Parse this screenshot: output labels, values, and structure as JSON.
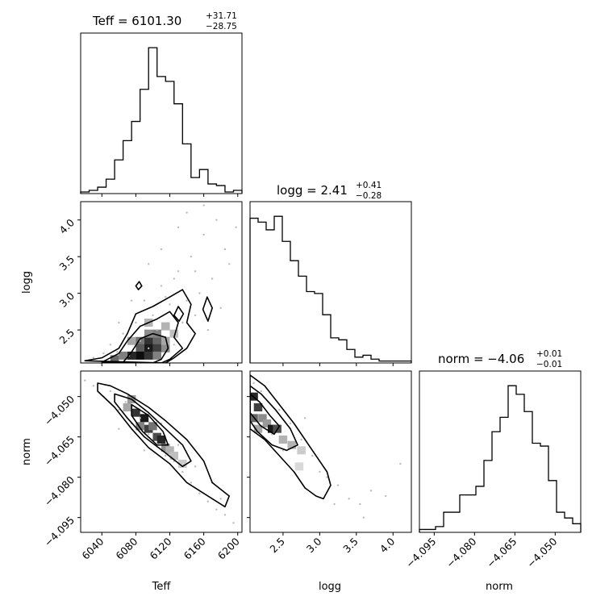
{
  "chart_data": [
    {
      "type": "histogram",
      "id": "teff-hist",
      "title_param": "Teff",
      "title_value": "6101.30",
      "title_plus": "+31.71",
      "title_minus": "−28.75",
      "xlim": [
        6015,
        6205
      ],
      "bin_edges": [
        6015,
        6025,
        6035,
        6045,
        6055,
        6065,
        6075,
        6085,
        6095,
        6105,
        6115,
        6125,
        6135,
        6145,
        6155,
        6165,
        6175,
        6185,
        6195,
        6205
      ],
      "counts": [
        1,
        2,
        4,
        9,
        21,
        33,
        45,
        65,
        91,
        73,
        70,
        56,
        31,
        10,
        15,
        6,
        5,
        1,
        2
      ]
    },
    {
      "type": "histogram",
      "id": "logg-hist",
      "title_param": "logg",
      "title_value": "2.41",
      "title_plus": "+0.41",
      "title_minus": "−0.28",
      "xlim": [
        2.05,
        4.25
      ],
      "bin_edges": [
        2.05,
        2.16,
        2.27,
        2.38,
        2.49,
        2.6,
        2.71,
        2.82,
        2.93,
        3.04,
        3.15,
        3.26,
        3.37,
        3.48,
        3.59,
        3.7,
        3.81,
        3.92,
        4.03,
        4.14,
        4.25
      ],
      "counts": [
        75,
        73,
        69,
        76,
        63,
        53,
        45,
        37,
        36,
        25,
        13,
        12,
        7,
        3,
        4,
        2,
        1,
        1,
        1,
        1
      ]
    },
    {
      "type": "histogram",
      "id": "norm-hist",
      "title_param": "norm",
      "title_value": "−4.06",
      "title_plus": "+0.01",
      "title_minus": "−0.01",
      "xlim": [
        -4.1005,
        -4.0405
      ],
      "bin_edges": [
        -4.1005,
        -4.0975,
        -4.0945,
        -4.0915,
        -4.0885,
        -4.0855,
        -4.0825,
        -4.0795,
        -4.0765,
        -4.0735,
        -4.0705,
        -4.0675,
        -4.0645,
        -4.0615,
        -4.0585,
        -4.0555,
        -4.0525,
        -4.0495,
        -4.0465,
        -4.0435,
        -4.0405
      ],
      "counts": [
        1,
        1,
        2,
        7,
        7,
        13,
        13,
        16,
        25,
        35,
        40,
        51,
        48,
        42,
        31,
        30,
        18,
        7,
        5,
        3
      ]
    },
    {
      "type": "scatter-density",
      "id": "logg-vs-teff",
      "xlim": [
        6015,
        6205
      ],
      "ylim": [
        2.05,
        4.25
      ],
      "scatter": [
        [
          6030,
          2.12
        ],
        [
          6042,
          2.18
        ],
        [
          6050,
          2.3
        ],
        [
          6058,
          2.2
        ],
        [
          6065,
          2.45
        ],
        [
          6072,
          2.15
        ],
        [
          6080,
          2.6
        ],
        [
          6085,
          2.35
        ],
        [
          6090,
          2.9
        ],
        [
          6095,
          2.25
        ],
        [
          6100,
          2.7
        ],
        [
          6105,
          2.5
        ],
        [
          6110,
          3.1
        ],
        [
          6115,
          2.4
        ],
        [
          6120,
          2.85
        ],
        [
          6125,
          2.3
        ],
        [
          6130,
          3.3
        ],
        [
          6135,
          2.6
        ],
        [
          6140,
          2.9
        ],
        [
          6145,
          3.5
        ],
        [
          6150,
          2.7
        ],
        [
          6155,
          3.0
        ],
        [
          6160,
          3.8
        ],
        [
          6165,
          2.5
        ],
        [
          6170,
          3.2
        ],
        [
          6175,
          4.0
        ],
        [
          6180,
          2.8
        ],
        [
          6185,
          3.6
        ],
        [
          6190,
          3.4
        ],
        [
          6198,
          3.9
        ],
        [
          6125,
          3.2
        ],
        [
          6110,
          3.6
        ],
        [
          6140,
          4.1
        ],
        [
          6160,
          4.2
        ],
        [
          6075,
          2.9
        ],
        [
          6095,
          3.4
        ],
        [
          6130,
          3.9
        ],
        [
          6150,
          3.3
        ],
        [
          6115,
          2.95
        ],
        [
          6060,
          2.6
        ]
      ],
      "cells": [
        [
          6075,
          2.35,
          0.35
        ],
        [
          6085,
          2.35,
          0.55
        ],
        [
          6095,
          2.35,
          0.8
        ],
        [
          6105,
          2.35,
          0.6
        ],
        [
          6085,
          2.25,
          0.65
        ],
        [
          6095,
          2.25,
          0.9
        ],
        [
          6105,
          2.25,
          0.75
        ],
        [
          6115,
          2.25,
          0.45
        ],
        [
          6075,
          2.15,
          0.85
        ],
        [
          6085,
          2.15,
          0.95
        ],
        [
          6095,
          2.15,
          0.8
        ],
        [
          6065,
          2.15,
          0.5
        ],
        [
          6105,
          2.15,
          0.5
        ],
        [
          6095,
          2.45,
          0.45
        ],
        [
          6105,
          2.45,
          0.5
        ],
        [
          6115,
          2.55,
          0.3
        ],
        [
          6095,
          2.6,
          0.3
        ],
        [
          6125,
          2.45,
          0.25
        ],
        [
          6055,
          2.1,
          0.6
        ],
        [
          6115,
          2.35,
          0.35
        ]
      ],
      "contours": [
        [
          [
            6020,
            2.08
          ],
          [
            6040,
            2.12
          ],
          [
            6060,
            2.25
          ],
          [
            6070,
            2.45
          ],
          [
            6080,
            2.72
          ],
          [
            6100,
            2.82
          ],
          [
            6120,
            2.95
          ],
          [
            6135,
            3.05
          ],
          [
            6145,
            2.85
          ],
          [
            6140,
            2.6
          ],
          [
            6150,
            2.45
          ],
          [
            6140,
            2.25
          ],
          [
            6125,
            2.12
          ],
          [
            6115,
            2.05
          ]
        ],
        [
          [
            6040,
            2.06
          ],
          [
            6060,
            2.18
          ],
          [
            6070,
            2.35
          ],
          [
            6085,
            2.55
          ],
          [
            6105,
            2.65
          ],
          [
            6120,
            2.75
          ],
          [
            6130,
            2.6
          ],
          [
            6125,
            2.4
          ],
          [
            6135,
            2.25
          ],
          [
            6120,
            2.1
          ],
          [
            6110,
            2.05
          ]
        ],
        [
          [
            6065,
            2.06
          ],
          [
            6075,
            2.2
          ],
          [
            6085,
            2.38
          ],
          [
            6100,
            2.45
          ],
          [
            6115,
            2.4
          ],
          [
            6118,
            2.25
          ],
          [
            6110,
            2.1
          ],
          [
            6100,
            2.05
          ]
        ],
        [
          [
            6159,
            2.78
          ],
          [
            6164,
            2.95
          ],
          [
            6170,
            2.8
          ],
          [
            6165,
            2.62
          ],
          [
            6159,
            2.78
          ]
        ],
        [
          [
            6080,
            3.1
          ],
          [
            6084,
            3.16
          ],
          [
            6087,
            3.1
          ],
          [
            6083,
            3.05
          ],
          [
            6080,
            3.1
          ]
        ],
        [
          [
            6125,
            2.7
          ],
          [
            6130,
            2.82
          ],
          [
            6136,
            2.72
          ],
          [
            6131,
            2.62
          ],
          [
            6125,
            2.7
          ]
        ]
      ]
    },
    {
      "type": "scatter-density",
      "id": "norm-vs-teff",
      "xlim": [
        6015,
        6205
      ],
      "ylim": [
        -4.1005,
        -4.0405
      ],
      "scatter": [
        [
          6020,
          -4.044
        ],
        [
          6030,
          -4.046
        ],
        [
          6042,
          -4.05
        ],
        [
          6050,
          -4.048
        ],
        [
          6060,
          -4.055
        ],
        [
          6068,
          -4.052
        ],
        [
          6075,
          -4.06
        ],
        [
          6085,
          -4.058
        ],
        [
          6095,
          -4.064
        ],
        [
          6105,
          -4.068
        ],
        [
          6115,
          -4.072
        ],
        [
          6125,
          -4.074
        ],
        [
          6135,
          -4.078
        ],
        [
          6145,
          -4.082
        ],
        [
          6155,
          -4.086
        ],
        [
          6165,
          -4.089
        ],
        [
          6175,
          -4.092
        ],
        [
          6185,
          -4.094
        ],
        [
          6195,
          -4.097
        ],
        [
          6110,
          -4.06
        ],
        [
          6090,
          -4.07
        ],
        [
          6130,
          -4.068
        ],
        [
          6150,
          -4.076
        ],
        [
          6170,
          -4.082
        ],
        [
          6060,
          -4.062
        ],
        [
          6180,
          -4.088
        ]
      ],
      "cells": [
        [
          6070,
          -4.054,
          0.35
        ],
        [
          6080,
          -4.056,
          0.8
        ],
        [
          6090,
          -4.058,
          0.9
        ],
        [
          6095,
          -4.062,
          0.75
        ],
        [
          6100,
          -4.061,
          0.55
        ],
        [
          6105,
          -4.065,
          0.7
        ],
        [
          6110,
          -4.066,
          0.85
        ],
        [
          6115,
          -4.069,
          0.45
        ],
        [
          6085,
          -4.061,
          0.5
        ],
        [
          6075,
          -4.051,
          0.4
        ],
        [
          6120,
          -4.07,
          0.3
        ],
        [
          6125,
          -4.072,
          0.25
        ],
        [
          6135,
          -4.075,
          0.2
        ]
      ],
      "contours": [
        [
          [
            6035,
            -4.045
          ],
          [
            6050,
            -4.046
          ],
          [
            6070,
            -4.049
          ],
          [
            6095,
            -4.054
          ],
          [
            6115,
            -4.059
          ],
          [
            6140,
            -4.066
          ],
          [
            6160,
            -4.074
          ],
          [
            6170,
            -4.082
          ],
          [
            6190,
            -4.087
          ],
          [
            6185,
            -4.091
          ],
          [
            6160,
            -4.086
          ],
          [
            6140,
            -4.082
          ],
          [
            6120,
            -4.075
          ],
          [
            6095,
            -4.069
          ],
          [
            6075,
            -4.062
          ],
          [
            6055,
            -4.054
          ],
          [
            6035,
            -4.048
          ]
        ],
        [
          [
            6055,
            -4.049
          ],
          [
            6075,
            -4.051
          ],
          [
            6095,
            -4.056
          ],
          [
            6115,
            -4.062
          ],
          [
            6135,
            -4.068
          ],
          [
            6145,
            -4.074
          ],
          [
            6135,
            -4.076
          ],
          [
            6115,
            -4.071
          ],
          [
            6090,
            -4.065
          ],
          [
            6070,
            -4.058
          ],
          [
            6055,
            -4.052
          ]
        ],
        [
          [
            6075,
            -4.053
          ],
          [
            6095,
            -4.057
          ],
          [
            6112,
            -4.063
          ],
          [
            6118,
            -4.068
          ],
          [
            6105,
            -4.068
          ],
          [
            6088,
            -4.063
          ],
          [
            6075,
            -4.057
          ]
        ]
      ]
    },
    {
      "type": "scatter-density",
      "id": "norm-vs-logg",
      "xlim": [
        2.05,
        4.25
      ],
      "ylim": [
        -4.1005,
        -4.0405
      ],
      "scatter": [
        [
          2.1,
          -4.045
        ],
        [
          2.2,
          -4.048
        ],
        [
          2.3,
          -4.052
        ],
        [
          2.45,
          -4.055
        ],
        [
          2.6,
          -4.06
        ],
        [
          2.75,
          -4.066
        ],
        [
          2.9,
          -4.072
        ],
        [
          3.0,
          -4.078
        ],
        [
          3.1,
          -4.08
        ],
        [
          3.25,
          -4.083
        ],
        [
          3.4,
          -4.088
        ],
        [
          3.55,
          -4.09
        ],
        [
          3.7,
          -4.085
        ],
        [
          3.9,
          -4.087
        ],
        [
          4.1,
          -4.075
        ],
        [
          2.5,
          -4.07
        ],
        [
          2.8,
          -4.058
        ],
        [
          3.2,
          -4.09
        ],
        [
          3.6,
          -4.095
        ],
        [
          2.35,
          -4.064
        ]
      ],
      "cells": [
        [
          2.1,
          -4.05,
          0.85
        ],
        [
          2.16,
          -4.054,
          0.75
        ],
        [
          2.1,
          -4.058,
          0.6
        ],
        [
          2.22,
          -4.058,
          0.45
        ],
        [
          2.28,
          -4.06,
          0.4
        ],
        [
          2.35,
          -4.062,
          0.9
        ],
        [
          2.42,
          -4.062,
          0.7
        ],
        [
          2.16,
          -4.062,
          0.35
        ],
        [
          2.5,
          -4.066,
          0.3
        ],
        [
          2.62,
          -4.068,
          0.3
        ],
        [
          2.75,
          -4.07,
          0.2
        ],
        [
          2.72,
          -4.076,
          0.15
        ]
      ],
      "contours": [
        [
          [
            2.05,
            -4.042
          ],
          [
            2.25,
            -4.046
          ],
          [
            2.45,
            -4.053
          ],
          [
            2.65,
            -4.06
          ],
          [
            2.85,
            -4.068
          ],
          [
            3.0,
            -4.074
          ],
          [
            3.1,
            -4.078
          ],
          [
            3.15,
            -4.083
          ],
          [
            3.05,
            -4.088
          ],
          [
            2.95,
            -4.087
          ],
          [
            2.8,
            -4.084
          ],
          [
            2.65,
            -4.078
          ],
          [
            2.45,
            -4.072
          ],
          [
            2.25,
            -4.066
          ],
          [
            2.05,
            -4.062
          ]
        ],
        [
          [
            2.05,
            -4.046
          ],
          [
            2.2,
            -4.049
          ],
          [
            2.4,
            -4.055
          ],
          [
            2.6,
            -4.062
          ],
          [
            2.7,
            -4.068
          ],
          [
            2.55,
            -4.07
          ],
          [
            2.35,
            -4.068
          ],
          [
            2.15,
            -4.063
          ],
          [
            2.05,
            -4.059
          ]
        ],
        [
          [
            2.05,
            -4.049
          ],
          [
            2.18,
            -4.052
          ],
          [
            2.32,
            -4.057
          ],
          [
            2.45,
            -4.061
          ],
          [
            2.38,
            -4.064
          ],
          [
            2.2,
            -4.061
          ],
          [
            2.05,
            -4.056
          ]
        ]
      ]
    }
  ],
  "axes": {
    "teff_ticks": [
      "6040",
      "6080",
      "6120",
      "6160",
      "6200"
    ],
    "teff_tick_values": [
      6040,
      6080,
      6120,
      6160,
      6200
    ],
    "logg_ticks": [
      "2.5",
      "3.0",
      "3.5",
      "4.0"
    ],
    "logg_tick_values": [
      2.5,
      3.0,
      3.5,
      4.0
    ],
    "norm_ticks": [
      "−4.095",
      "−4.080",
      "−4.065",
      "−4.050"
    ],
    "norm_tick_values": [
      -4.095,
      -4.08,
      -4.065,
      -4.05
    ],
    "xlabel_teff": "Teff",
    "xlabel_logg": "logg",
    "xlabel_norm": "norm",
    "ylabel_logg": "logg",
    "ylabel_norm": "norm"
  },
  "titles": {
    "teff_main": "Teff = 6101.30",
    "teff_plus": "+31.71",
    "teff_minus": "−28.75",
    "logg_main": "logg = 2.41",
    "logg_plus": "+0.41",
    "logg_minus": "−0.28",
    "norm_main": "norm = −4.06",
    "norm_plus": "+0.01",
    "norm_minus": "−0.01"
  }
}
